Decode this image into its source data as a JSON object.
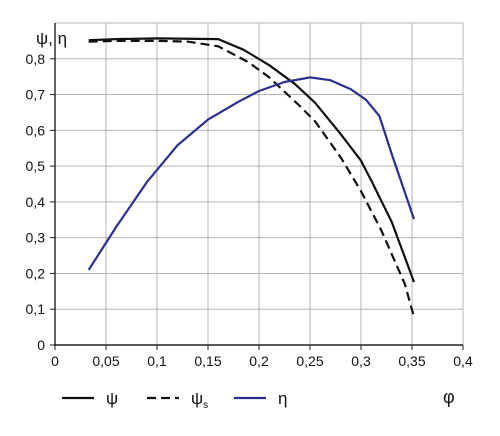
{
  "chart_data": {
    "type": "line",
    "title": "",
    "ylabel": "ψ, η",
    "xlabel": "φ",
    "xlim": [
      0,
      0.4
    ],
    "ylim": [
      0,
      0.9
    ],
    "x_ticks": [
      0,
      0.05,
      0.1,
      0.15,
      0.2,
      0.25,
      0.3,
      0.35,
      0.4
    ],
    "x_tick_labels": [
      "0",
      "0,05",
      "0,1",
      "0,15",
      "0,2",
      "0,25",
      "0,3",
      "0,35",
      "0,4"
    ],
    "y_ticks": [
      0,
      0.1,
      0.2,
      0.3,
      0.4,
      0.5,
      0.6,
      0.7,
      0.8
    ],
    "y_tick_labels": [
      "0",
      "0,1",
      "0,2",
      "0,3",
      "0,4",
      "0,5",
      "0,6",
      "0,7",
      "0,8"
    ],
    "grid": true,
    "legend_position": "bottom",
    "series": [
      {
        "name": "ψ",
        "subscript": "",
        "color": "#111111",
        "dash": "solid",
        "points": [
          [
            0.033,
            0.852
          ],
          [
            0.06,
            0.855
          ],
          [
            0.1,
            0.857
          ],
          [
            0.16,
            0.855
          ],
          [
            0.185,
            0.825
          ],
          [
            0.21,
            0.782
          ],
          [
            0.235,
            0.73
          ],
          [
            0.255,
            0.677
          ],
          [
            0.28,
            0.59
          ],
          [
            0.3,
            0.515
          ],
          [
            0.31,
            0.46
          ],
          [
            0.33,
            0.345
          ],
          [
            0.352,
            0.176
          ]
        ]
      },
      {
        "name": "ψ",
        "subscript": "s",
        "color": "#111111",
        "dash": "dashed",
        "points": [
          [
            0.033,
            0.848
          ],
          [
            0.06,
            0.85
          ],
          [
            0.1,
            0.85
          ],
          [
            0.13,
            0.848
          ],
          [
            0.16,
            0.835
          ],
          [
            0.19,
            0.79
          ],
          [
            0.21,
            0.748
          ],
          [
            0.24,
            0.668
          ],
          [
            0.255,
            0.625
          ],
          [
            0.28,
            0.525
          ],
          [
            0.3,
            0.43
          ],
          [
            0.32,
            0.32
          ],
          [
            0.343,
            0.17
          ],
          [
            0.352,
            0.078
          ]
        ]
      },
      {
        "name": "η",
        "subscript": "",
        "color": "#2b2f8f",
        "dash": "solid",
        "points": [
          [
            0.033,
            0.21
          ],
          [
            0.06,
            0.33
          ],
          [
            0.09,
            0.455
          ],
          [
            0.12,
            0.558
          ],
          [
            0.15,
            0.63
          ],
          [
            0.18,
            0.68
          ],
          [
            0.2,
            0.71
          ],
          [
            0.225,
            0.735
          ],
          [
            0.25,
            0.748
          ],
          [
            0.27,
            0.74
          ],
          [
            0.29,
            0.715
          ],
          [
            0.305,
            0.685
          ],
          [
            0.318,
            0.64
          ],
          [
            0.33,
            0.535
          ],
          [
            0.352,
            0.352
          ]
        ]
      }
    ]
  }
}
